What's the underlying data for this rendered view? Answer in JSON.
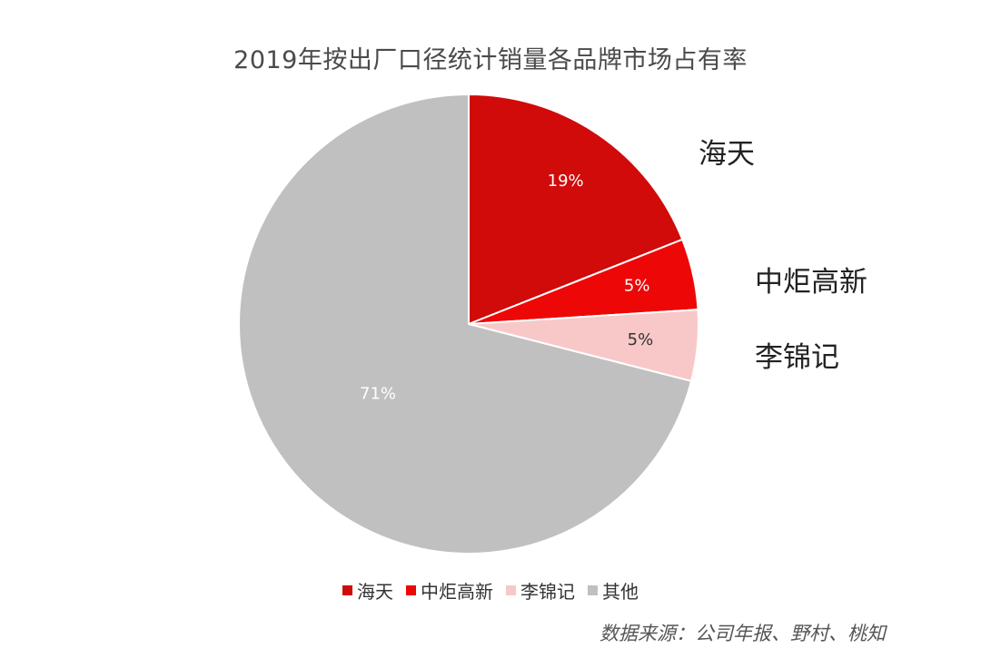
{
  "chart_data": {
    "type": "pie",
    "title": "2019年按出厂口径统计销量各品牌市场占有率",
    "slices": [
      {
        "name": "海天",
        "value": 19,
        "label": "19%",
        "color": "#d10a0a",
        "label_color": "#ffffff"
      },
      {
        "name": "中炬高新",
        "value": 5,
        "label": "5%",
        "color": "#ee0707",
        "label_color": "#ffffff"
      },
      {
        "name": "李锦记",
        "value": 5,
        "label": "5%",
        "color": "#f8c8c8",
        "label_color": "#333333"
      },
      {
        "name": "其他",
        "value": 71,
        "label": "71%",
        "color": "#c0c0c0",
        "label_color": "#ffffff"
      }
    ],
    "callouts": [
      "海天",
      "中炬高新",
      "李锦记"
    ],
    "legend_position": "bottom",
    "source": "数据来源：公司年报、野村、桃知"
  }
}
